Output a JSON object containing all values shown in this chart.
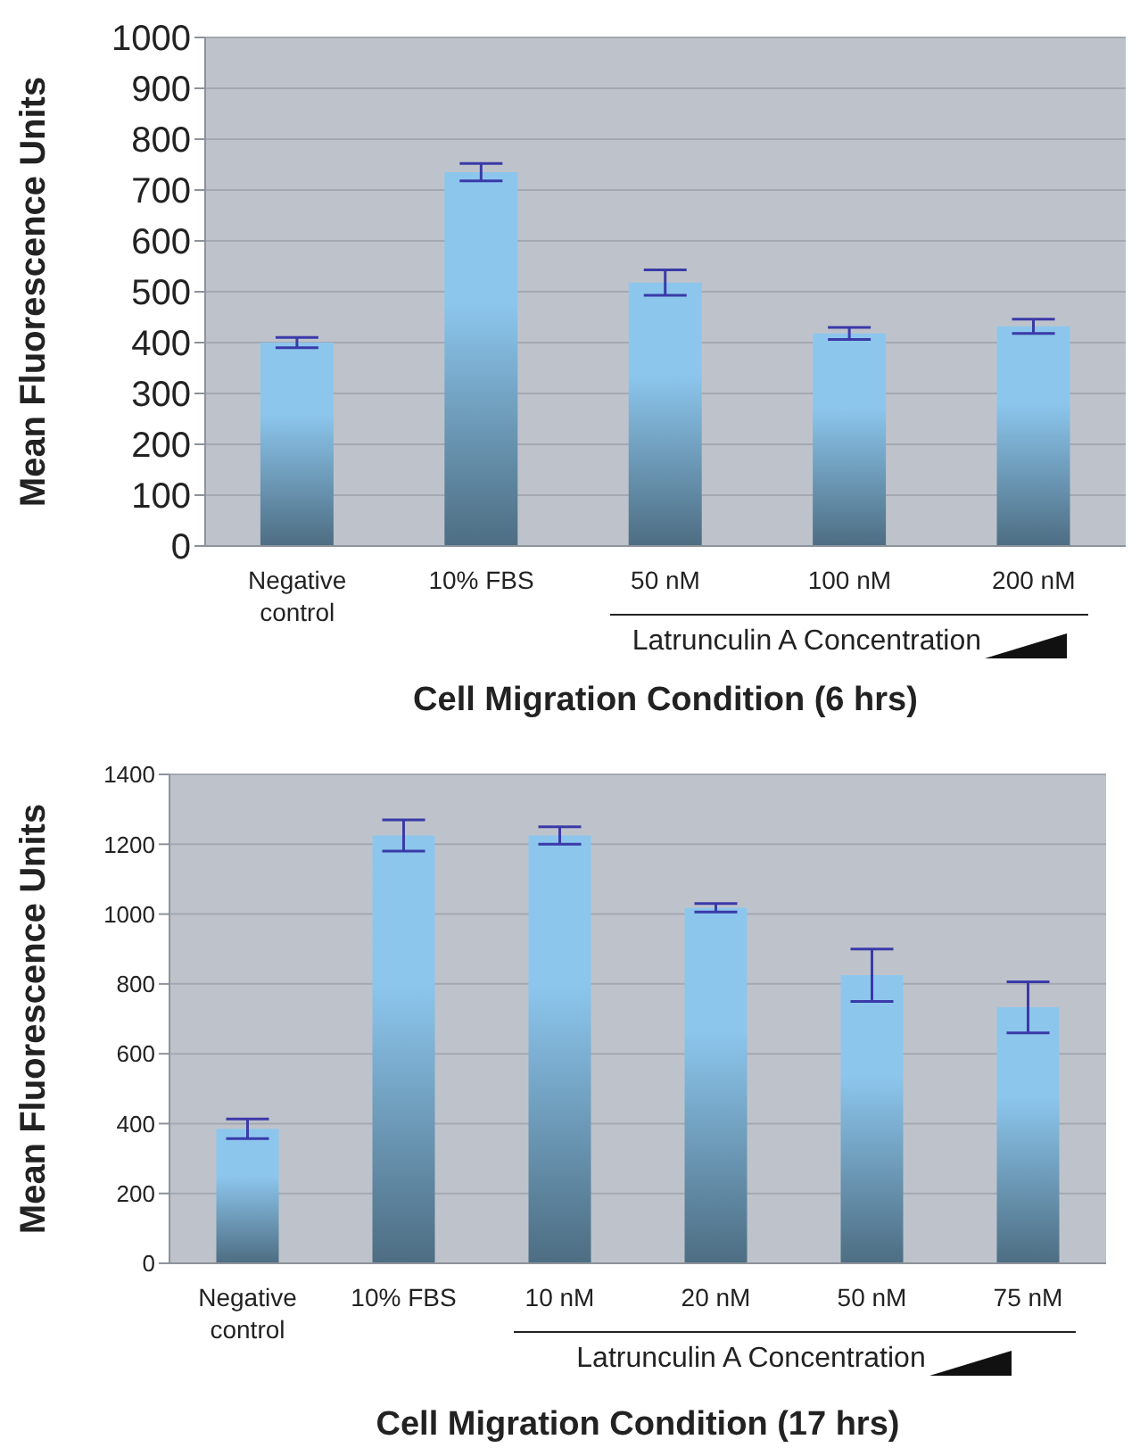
{
  "chart_data": [
    {
      "type": "bar",
      "xlabel": "Cell Migration Condition (6 hrs)",
      "ylabel": "Mean Fluorescence Units",
      "categories": [
        "Negative control",
        "10% FBS",
        "50 nM",
        "100 nM",
        "200 nM"
      ],
      "values": [
        400,
        735,
        518,
        418,
        432
      ],
      "errors": [
        10,
        17,
        25,
        12,
        14
      ],
      "color": "#8cc6ed",
      "ylim": [
        0,
        1000
      ],
      "yticks": [
        0,
        100,
        200,
        300,
        400,
        500,
        600,
        700,
        800,
        900,
        1000
      ],
      "grid": "y",
      "annotations": [
        "Latrunculin A Concentration"
      ]
    },
    {
      "type": "bar",
      "xlabel": "Cell Migration Condition (17 hrs)",
      "ylabel": "Mean Fluorescence Units",
      "categories": [
        "Negative control",
        "10% FBS",
        "10 nM",
        "20 nM",
        "50 nM",
        "75 nM"
      ],
      "values": [
        385,
        1225,
        1225,
        1018,
        825,
        733
      ],
      "errors": [
        28,
        45,
        25,
        12,
        75,
        73
      ],
      "color": "#8cc6ed",
      "ylim": [
        0,
        1400
      ],
      "yticks": [
        0,
        200,
        400,
        600,
        800,
        1000,
        1200,
        1400
      ],
      "grid": "y",
      "annotations": [
        "Latrunculin A Concentration"
      ]
    }
  ]
}
